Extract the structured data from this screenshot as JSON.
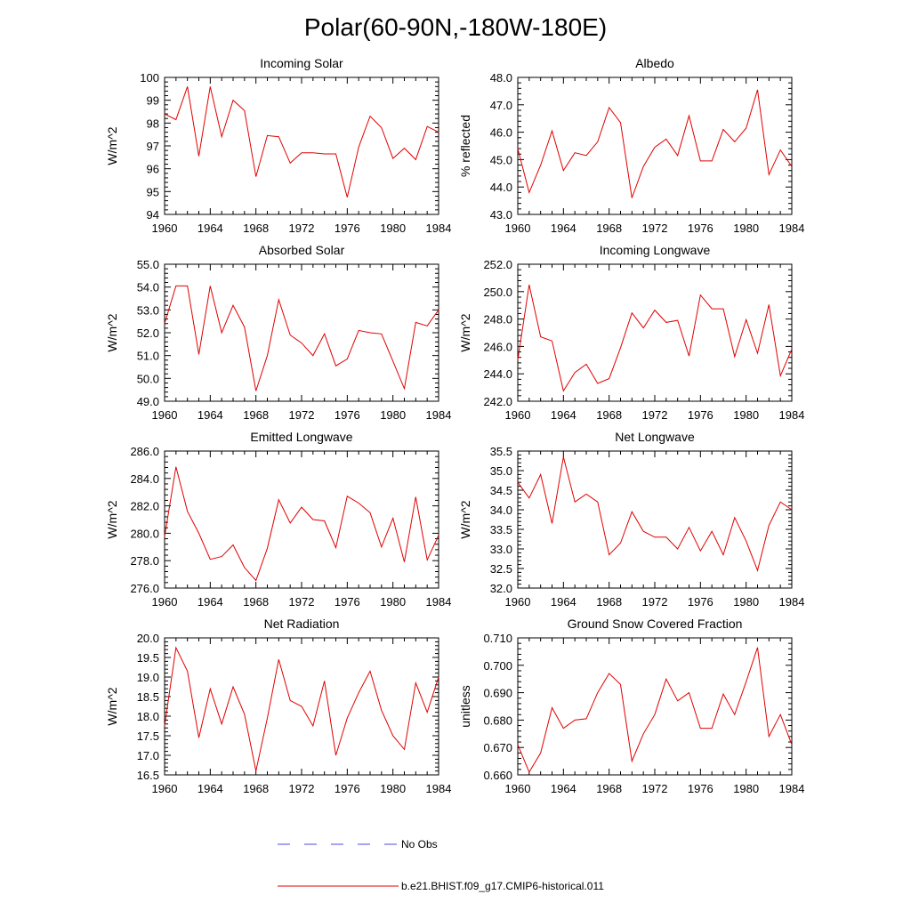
{
  "figure": {
    "title": "Polar(60-90N,-180W-180E)"
  },
  "legend": [
    {
      "label": "No Obs",
      "color": "#4a4adf",
      "style": "dashed"
    },
    {
      "label": "b.e21.BHIST.f09_g17.CMIP6-historical.011",
      "color": "#e00000",
      "style": "solid"
    }
  ],
  "chart_data": [
    {
      "type": "line",
      "title": "Incoming Solar",
      "ylabel": "W/m^2",
      "xlim": [
        1960,
        1984
      ],
      "ylim": [
        94,
        100
      ],
      "xticks": [
        "1960",
        "1964",
        "1968",
        "1972",
        "1976",
        "1980",
        "1984"
      ],
      "yticks": [
        "94",
        "95",
        "96",
        "97",
        "98",
        "99",
        "100"
      ],
      "series": [
        {
          "color": "#e00000",
          "x": [
            1960,
            1961,
            1962,
            1963,
            1964,
            1965,
            1966,
            1967,
            1968,
            1969,
            1970,
            1971,
            1972,
            1973,
            1974,
            1975,
            1976,
            1977,
            1978,
            1979,
            1980,
            1981,
            1982,
            1983,
            1984
          ],
          "y": [
            98.4,
            98.15,
            99.6,
            96.55,
            99.6,
            97.4,
            99.0,
            98.55,
            95.65,
            97.45,
            97.4,
            96.25,
            96.7,
            96.7,
            96.65,
            96.65,
            94.75,
            96.95,
            98.3,
            97.8,
            96.45,
            96.9,
            96.4,
            97.85,
            97.6
          ]
        }
      ]
    },
    {
      "type": "line",
      "title": "Albedo",
      "ylabel": "% reflected",
      "xlim": [
        1960,
        1984
      ],
      "ylim": [
        43.0,
        48.0
      ],
      "xticks": [
        "1960",
        "1964",
        "1968",
        "1972",
        "1976",
        "1980",
        "1984"
      ],
      "yticks": [
        "43.0",
        "44.0",
        "45.0",
        "46.0",
        "47.0",
        "48.0"
      ],
      "series": [
        {
          "color": "#e00000",
          "x": [
            1960,
            1961,
            1962,
            1963,
            1964,
            1965,
            1966,
            1967,
            1968,
            1969,
            1970,
            1971,
            1972,
            1973,
            1974,
            1975,
            1976,
            1977,
            1978,
            1979,
            1980,
            1981,
            1982,
            1983,
            1984
          ],
          "y": [
            45.4,
            43.8,
            44.8,
            46.05,
            44.6,
            45.25,
            45.15,
            45.65,
            46.9,
            46.35,
            43.6,
            44.75,
            45.45,
            45.75,
            45.15,
            46.6,
            44.95,
            44.95,
            46.1,
            45.65,
            46.15,
            47.55,
            44.45,
            45.35,
            44.75
          ]
        }
      ]
    },
    {
      "type": "line",
      "title": "Absorbed Solar",
      "ylabel": "W/m^2",
      "xlim": [
        1960,
        1984
      ],
      "ylim": [
        49.0,
        55.0
      ],
      "xticks": [
        "1960",
        "1964",
        "1968",
        "1972",
        "1976",
        "1980",
        "1984"
      ],
      "yticks": [
        "49.0",
        "50.0",
        "51.0",
        "52.0",
        "53.0",
        "54.0",
        "55.0"
      ],
      "series": [
        {
          "color": "#e00000",
          "x": [
            1960,
            1961,
            1962,
            1963,
            1964,
            1965,
            1966,
            1967,
            1968,
            1969,
            1970,
            1971,
            1972,
            1973,
            1974,
            1975,
            1976,
            1977,
            1978,
            1979,
            1980,
            1981,
            1982,
            1983,
            1984
          ],
          "y": [
            52.4,
            54.05,
            54.05,
            51.05,
            54.05,
            52.0,
            53.2,
            52.25,
            49.45,
            51.0,
            53.45,
            51.9,
            51.55,
            51.0,
            51.95,
            50.55,
            50.85,
            52.1,
            52.0,
            51.95,
            50.75,
            49.55,
            52.45,
            52.3,
            53.0
          ]
        }
      ]
    },
    {
      "type": "line",
      "title": "Incoming Longwave",
      "ylabel": "W/m^2",
      "xlim": [
        1960,
        1984
      ],
      "ylim": [
        242.0,
        252.0
      ],
      "xticks": [
        "1960",
        "1964",
        "1968",
        "1972",
        "1976",
        "1980",
        "1984"
      ],
      "yticks": [
        "242.0",
        "244.0",
        "246.0",
        "248.0",
        "250.0",
        "252.0"
      ],
      "series": [
        {
          "color": "#e00000",
          "x": [
            1960,
            1961,
            1962,
            1963,
            1964,
            1965,
            1966,
            1967,
            1968,
            1969,
            1970,
            1971,
            1972,
            1973,
            1974,
            1975,
            1976,
            1977,
            1978,
            1979,
            1980,
            1981,
            1982,
            1983,
            1984
          ],
          "y": [
            245.0,
            250.5,
            246.7,
            246.4,
            242.75,
            244.1,
            244.7,
            243.3,
            243.65,
            245.9,
            248.45,
            247.35,
            248.65,
            247.75,
            247.9,
            245.3,
            249.75,
            248.75,
            248.75,
            245.25,
            247.95,
            245.5,
            249.05,
            243.85,
            245.8
          ]
        }
      ]
    },
    {
      "type": "line",
      "title": "Emitted Longwave",
      "ylabel": "W/m^2",
      "xlim": [
        1960,
        1984
      ],
      "ylim": [
        276.0,
        286.0
      ],
      "xticks": [
        "1960",
        "1964",
        "1968",
        "1972",
        "1976",
        "1980",
        "1984"
      ],
      "yticks": [
        "276.0",
        "278.0",
        "280.0",
        "282.0",
        "284.0",
        "286.0"
      ],
      "series": [
        {
          "color": "#e00000",
          "x": [
            1960,
            1961,
            1962,
            1963,
            1964,
            1965,
            1966,
            1967,
            1968,
            1969,
            1970,
            1971,
            1972,
            1973,
            1974,
            1975,
            1976,
            1977,
            1978,
            1979,
            1980,
            1981,
            1982,
            1983,
            1984
          ],
          "y": [
            279.75,
            284.85,
            281.6,
            280.0,
            278.1,
            278.3,
            279.15,
            277.5,
            276.55,
            278.9,
            282.45,
            280.75,
            281.9,
            281.0,
            280.9,
            278.95,
            282.7,
            282.2,
            281.5,
            279.0,
            281.1,
            277.9,
            282.65,
            278.05,
            279.85
          ]
        }
      ]
    },
    {
      "type": "line",
      "title": "Net Longwave",
      "ylabel": "W/m^2",
      "xlim": [
        1960,
        1984
      ],
      "ylim": [
        32.0,
        35.5
      ],
      "xticks": [
        "1960",
        "1964",
        "1968",
        "1972",
        "1976",
        "1980",
        "1984"
      ],
      "yticks": [
        "32.0",
        "32.5",
        "33.0",
        "33.5",
        "34.0",
        "34.5",
        "35.0",
        "35.5"
      ],
      "series": [
        {
          "color": "#e00000",
          "x": [
            1960,
            1961,
            1962,
            1963,
            1964,
            1965,
            1966,
            1967,
            1968,
            1969,
            1970,
            1971,
            1972,
            1973,
            1974,
            1975,
            1976,
            1977,
            1978,
            1979,
            1980,
            1981,
            1982,
            1983,
            1984
          ],
          "y": [
            34.7,
            34.3,
            34.9,
            33.65,
            35.35,
            34.2,
            34.4,
            34.2,
            32.85,
            33.15,
            33.95,
            33.45,
            33.3,
            33.3,
            33.0,
            33.55,
            32.95,
            33.45,
            32.85,
            33.8,
            33.2,
            32.45,
            33.6,
            34.2,
            34.0
          ]
        }
      ]
    },
    {
      "type": "line",
      "title": "Net Radiation",
      "ylabel": "W/m^2",
      "xlim": [
        1960,
        1984
      ],
      "ylim": [
        16.5,
        20.0
      ],
      "xticks": [
        "1960",
        "1964",
        "1968",
        "1972",
        "1976",
        "1980",
        "1984"
      ],
      "yticks": [
        "16.5",
        "17.0",
        "17.5",
        "18.0",
        "18.5",
        "19.0",
        "19.5",
        "20.0"
      ],
      "series": [
        {
          "color": "#e00000",
          "x": [
            1960,
            1961,
            1962,
            1963,
            1964,
            1965,
            1966,
            1967,
            1968,
            1969,
            1970,
            1971,
            1972,
            1973,
            1974,
            1975,
            1976,
            1977,
            1978,
            1979,
            1980,
            1981,
            1982,
            1983,
            1984
          ],
          "y": [
            17.75,
            19.75,
            19.15,
            17.45,
            18.7,
            17.8,
            18.75,
            18.05,
            16.6,
            17.95,
            19.45,
            18.4,
            18.25,
            17.75,
            18.9,
            17.0,
            17.95,
            18.6,
            19.15,
            18.15,
            17.5,
            17.15,
            18.85,
            18.1,
            19.0
          ]
        }
      ]
    },
    {
      "type": "line",
      "title": "Ground Snow Covered Fraction",
      "ylabel": "unitless",
      "xlim": [
        1960,
        1984
      ],
      "ylim": [
        0.66,
        0.71
      ],
      "xticks": [
        "1960",
        "1964",
        "1968",
        "1972",
        "1976",
        "1980",
        "1984"
      ],
      "yticks": [
        "0.660",
        "0.670",
        "0.680",
        "0.690",
        "0.700",
        "0.710"
      ],
      "series": [
        {
          "color": "#e00000",
          "x": [
            1960,
            1961,
            1962,
            1963,
            1964,
            1965,
            1966,
            1967,
            1968,
            1969,
            1970,
            1971,
            1972,
            1973,
            1974,
            1975,
            1976,
            1977,
            1978,
            1979,
            1980,
            1981,
            1982,
            1983,
            1984
          ],
          "y": [
            0.671,
            0.661,
            0.668,
            0.6845,
            0.677,
            0.68,
            0.6805,
            0.69,
            0.697,
            0.693,
            0.665,
            0.675,
            0.682,
            0.695,
            0.687,
            0.69,
            0.677,
            0.677,
            0.6895,
            0.682,
            0.694,
            0.7065,
            0.674,
            0.682,
            0.671
          ]
        }
      ]
    }
  ]
}
